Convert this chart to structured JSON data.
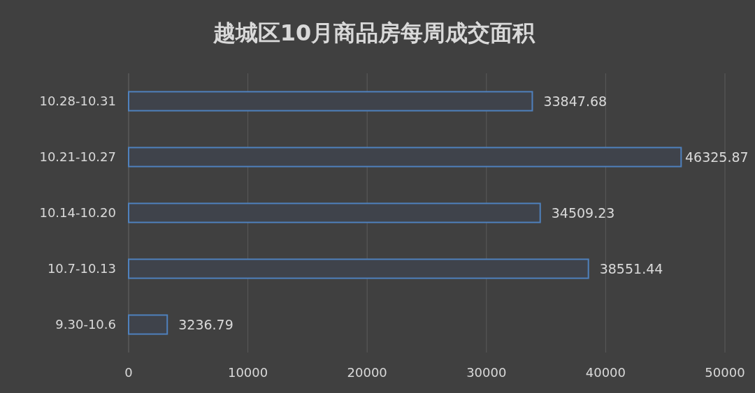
{
  "chart_data": {
    "type": "bar",
    "orientation": "horizontal",
    "title": "越城区10月商品房每周成交面积",
    "categories": [
      "10.28-10.31",
      "10.21-10.27",
      "10.14-10.20",
      "10.7-10.13",
      "9.30-10.6"
    ],
    "values": [
      33847.68,
      46325.87,
      34509.23,
      38551.44,
      3236.79
    ],
    "color": "#4f81bd",
    "xlim": [
      0,
      50000
    ],
    "xticks": [
      0,
      10000,
      20000,
      30000,
      40000,
      50000
    ],
    "grid": "x",
    "data_labels": true
  }
}
